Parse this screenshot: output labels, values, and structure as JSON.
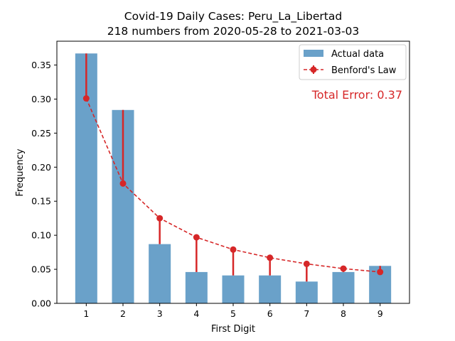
{
  "chart_data": {
    "type": "bar",
    "title": "Covid-19 Daily Cases: Peru_La_Libertad",
    "subtitle": "218 numbers from 2020-05-28 to 2021-03-03",
    "xlabel": "First Digit",
    "ylabel": "Frequency",
    "categories": [
      "1",
      "2",
      "3",
      "4",
      "5",
      "6",
      "7",
      "8",
      "9"
    ],
    "series": [
      {
        "name": "Actual data",
        "type": "bar",
        "color": "#6aa1c9",
        "values": [
          0.367,
          0.284,
          0.087,
          0.046,
          0.041,
          0.041,
          0.032,
          0.046,
          0.055
        ]
      },
      {
        "name": "Benford's Law",
        "type": "line",
        "color": "#d62728",
        "values": [
          0.301,
          0.176,
          0.125,
          0.097,
          0.079,
          0.067,
          0.058,
          0.051,
          0.046
        ]
      }
    ],
    "ylim": [
      0,
      0.385
    ],
    "yticks": [
      "0.00",
      "0.05",
      "0.10",
      "0.15",
      "0.20",
      "0.25",
      "0.30",
      "0.35"
    ],
    "legend_position": "top-right",
    "grid": false,
    "annotation": "Total Error: 0.37",
    "annotation_color": "#d62728"
  }
}
